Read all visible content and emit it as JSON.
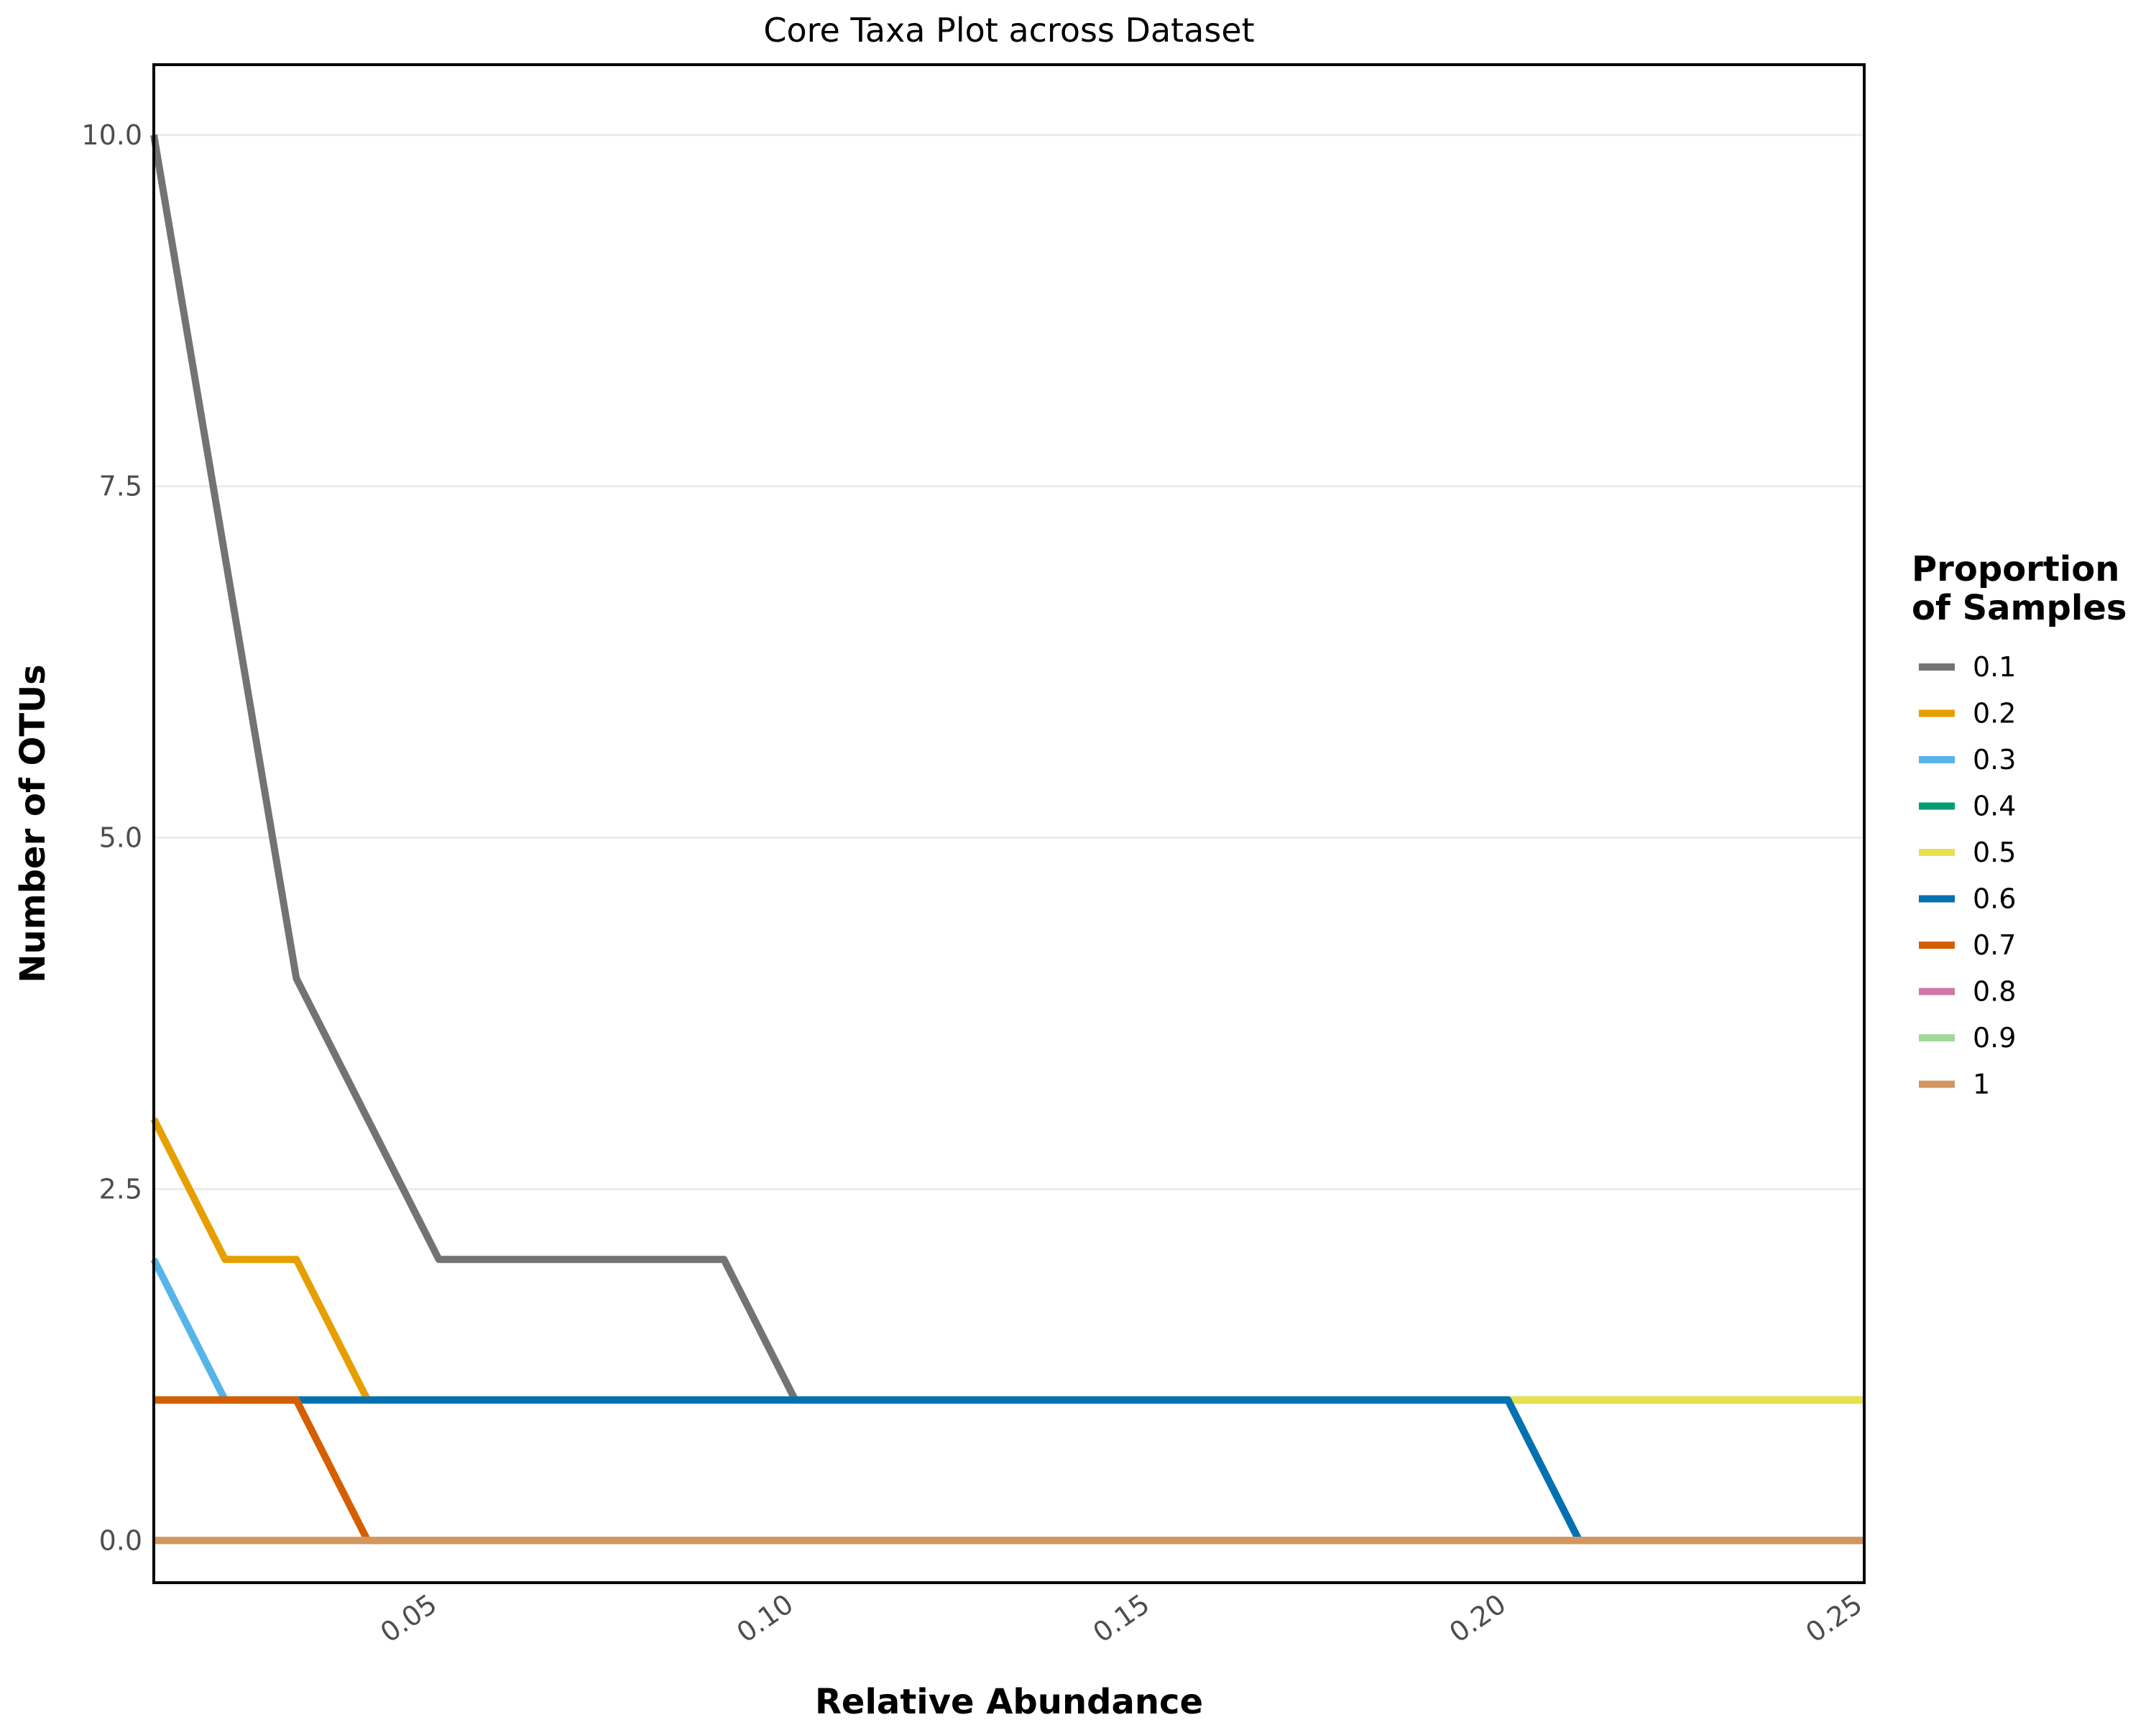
{
  "chart_data": {
    "type": "line",
    "title": "Core Taxa Plot across Dataset",
    "xlabel": "Relative Abundance",
    "ylabel": "Number of OTUs",
    "xlim": [
      0.01,
      0.25
    ],
    "ylim": [
      -0.3,
      10.5
    ],
    "x_ticks": [
      0.05,
      0.1,
      0.15,
      0.2,
      0.25
    ],
    "x_tick_labels": [
      "0.05",
      "0.10",
      "0.15",
      "0.20",
      "0.25"
    ],
    "y_ticks": [
      0.0,
      2.5,
      5.0,
      7.5,
      10.0
    ],
    "y_tick_labels": [
      "0.0",
      "2.5",
      "5.0",
      "7.5",
      "10.0"
    ],
    "grid": "horizontal",
    "legend_title_lines": [
      "Proportion",
      "of Samples"
    ],
    "legend_position": "right",
    "x": [
      0.01,
      0.02,
      0.03,
      0.04,
      0.05,
      0.06,
      0.07,
      0.08,
      0.09,
      0.1,
      0.11,
      0.12,
      0.13,
      0.14,
      0.15,
      0.16,
      0.17,
      0.18,
      0.19,
      0.2,
      0.21,
      0.22,
      0.23,
      0.24,
      0.25
    ],
    "series": [
      {
        "name": "0.1",
        "color": "#737373",
        "values": [
          10,
          7,
          4,
          3,
          2,
          2,
          2,
          2,
          2,
          1,
          1,
          1,
          1,
          1,
          1,
          1,
          1,
          1,
          1,
          1,
          0,
          0,
          0,
          0,
          0
        ]
      },
      {
        "name": "0.2",
        "color": "#E69F00",
        "values": [
          3,
          2,
          2,
          1,
          1,
          1,
          1,
          1,
          1,
          1,
          1,
          1,
          1,
          1,
          1,
          1,
          1,
          1,
          1,
          1,
          0,
          0,
          0,
          0,
          0
        ]
      },
      {
        "name": "0.3",
        "color": "#56B4E9",
        "values": [
          2,
          1,
          1,
          1,
          1,
          1,
          1,
          1,
          1,
          1,
          1,
          1,
          1,
          1,
          1,
          1,
          1,
          1,
          1,
          1,
          0,
          0,
          0,
          0,
          0
        ]
      },
      {
        "name": "0.4",
        "color": "#009E73",
        "values": [
          1,
          1,
          1,
          1,
          1,
          1,
          1,
          1,
          1,
          1,
          1,
          1,
          1,
          1,
          1,
          1,
          1,
          1,
          1,
          1,
          1,
          1,
          1,
          1,
          1
        ]
      },
      {
        "name": "0.5",
        "color": "#E8E04D",
        "values": [
          1,
          1,
          1,
          1,
          1,
          1,
          1,
          1,
          1,
          1,
          1,
          1,
          1,
          1,
          1,
          1,
          1,
          1,
          1,
          1,
          1,
          1,
          1,
          1,
          1
        ]
      },
      {
        "name": "0.6",
        "color": "#0072B2",
        "values": [
          1,
          1,
          1,
          1,
          1,
          1,
          1,
          1,
          1,
          1,
          1,
          1,
          1,
          1,
          1,
          1,
          1,
          1,
          1,
          1,
          0,
          0,
          0,
          0,
          0
        ]
      },
      {
        "name": "0.7",
        "color": "#D55E00",
        "values": [
          1,
          1,
          1,
          0,
          0,
          0,
          0,
          0,
          0,
          0,
          0,
          0,
          0,
          0,
          0,
          0,
          0,
          0,
          0,
          0,
          0,
          0,
          0,
          0,
          0
        ]
      },
      {
        "name": "0.8",
        "color": "#CC79A7",
        "values": [
          0,
          0,
          0,
          0,
          0,
          0,
          0,
          0,
          0,
          0,
          0,
          0,
          0,
          0,
          0,
          0,
          0,
          0,
          0,
          0,
          0,
          0,
          0,
          0,
          0
        ]
      },
      {
        "name": "0.9",
        "color": "#A1D99B",
        "values": [
          0,
          0,
          0,
          0,
          0,
          0,
          0,
          0,
          0,
          0,
          0,
          0,
          0,
          0,
          0,
          0,
          0,
          0,
          0,
          0,
          0,
          0,
          0,
          0,
          0
        ]
      },
      {
        "name": "1",
        "color": "#D4965F",
        "values": [
          0,
          0,
          0,
          0,
          0,
          0,
          0,
          0,
          0,
          0,
          0,
          0,
          0,
          0,
          0,
          0,
          0,
          0,
          0,
          0,
          0,
          0,
          0,
          0,
          0
        ]
      }
    ]
  }
}
